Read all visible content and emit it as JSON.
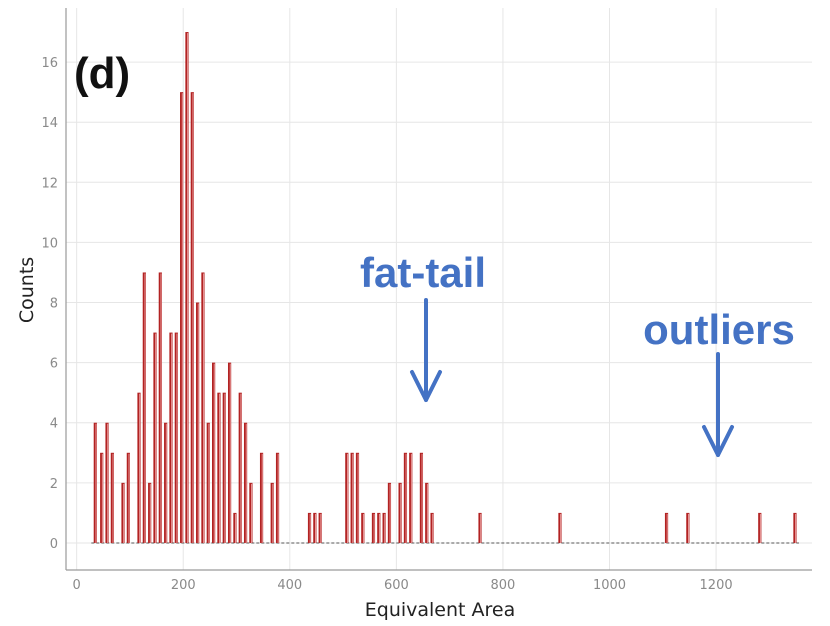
{
  "panel_label": "(d)",
  "annotations": [
    {
      "text": "fat-tail",
      "x": 650
    },
    {
      "text": "outliers",
      "x": 1210
    }
  ],
  "colors": {
    "bar_fill": "#b22222",
    "bar_highlight": "#f2b0b0",
    "grid": "#e6e6e6",
    "annotation": "#4472c4",
    "tick_text": "#8a8a8a"
  },
  "chart_data": {
    "type": "bar",
    "title": "",
    "xlabel": "Equivalent Area",
    "ylabel": "Counts",
    "xlim": [
      -20,
      1380
    ],
    "ylim": [
      -0.9,
      17.8
    ],
    "xticks": [
      0,
      200,
      400,
      600,
      800,
      1000,
      1200
    ],
    "yticks": [
      0,
      2,
      4,
      6,
      8,
      10,
      12,
      14,
      16
    ],
    "grid": true,
    "legend": "none",
    "bin_width": 6,
    "x": [
      35,
      47,
      57,
      67,
      77,
      87,
      97,
      107,
      117,
      127,
      137,
      147,
      157,
      167,
      177,
      187,
      197,
      207,
      217,
      227,
      237,
      247,
      257,
      267,
      277,
      287,
      297,
      307,
      317,
      327,
      337,
      347,
      357,
      367,
      377,
      387,
      397,
      407,
      417,
      427,
      437,
      447,
      457,
      467,
      477,
      487,
      497,
      507,
      517,
      527,
      537,
      547,
      557,
      567,
      577,
      587,
      597,
      607,
      617,
      627,
      637,
      647,
      657,
      667,
      757,
      907,
      1107,
      1147,
      1282,
      1348
    ],
    "values": [
      4,
      3,
      4,
      3,
      0,
      2,
      3,
      0,
      5,
      9,
      2,
      7,
      9,
      4,
      7,
      7,
      15,
      17,
      15,
      8,
      9,
      4,
      6,
      5,
      5,
      6,
      1,
      5,
      4,
      2,
      0,
      3,
      0,
      2,
      3,
      0,
      0,
      0,
      0,
      0,
      1,
      1,
      1,
      0,
      0,
      0,
      0,
      3,
      3,
      3,
      1,
      0,
      1,
      1,
      1,
      2,
      0,
      2,
      3,
      3,
      0,
      3,
      2,
      1,
      1,
      1,
      1,
      1,
      1,
      1
    ]
  }
}
